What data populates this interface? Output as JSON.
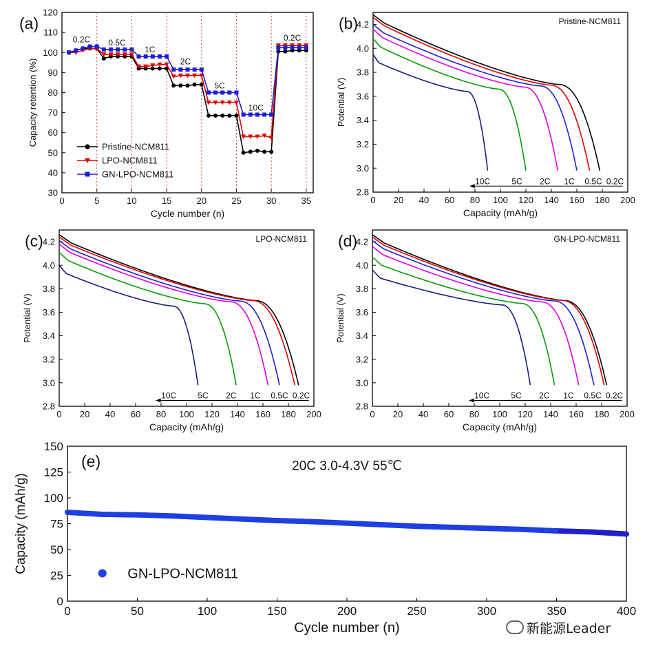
{
  "chart_data": [
    {
      "panel": "(a)",
      "type": "line",
      "xlabel": "Cycle number (n)",
      "ylabel": "Capacity retention (%)",
      "xlim": [
        0,
        36
      ],
      "ylim": [
        30,
        120
      ],
      "xticks": [
        0,
        5,
        10,
        15,
        20,
        25,
        30,
        35
      ],
      "yticks": [
        30,
        40,
        50,
        60,
        70,
        80,
        90,
        100,
        110,
        120
      ],
      "rate_labels": [
        {
          "text": "0.2C",
          "x": 2.8,
          "y": 105
        },
        {
          "text": "0.5C",
          "x": 7.9,
          "y": 103.5
        },
        {
          "text": "1C",
          "x": 12.6,
          "y": 100
        },
        {
          "text": "2C",
          "x": 17.7,
          "y": 94
        },
        {
          "text": "5C",
          "x": 22.6,
          "y": 82
        },
        {
          "text": "10C",
          "x": 27.8,
          "y": 71
        },
        {
          "text": "0.2C",
          "x": 33,
          "y": 106
        }
      ],
      "rate_boundaries": [
        5,
        10,
        15,
        20,
        25,
        30,
        35
      ],
      "x": [
        1,
        2,
        3,
        4,
        5,
        6,
        7,
        8,
        9,
        10,
        11,
        12,
        13,
        14,
        15,
        16,
        17,
        18,
        19,
        20,
        21,
        22,
        23,
        24,
        25,
        26,
        27,
        28,
        29,
        30,
        31,
        32,
        33,
        34,
        35
      ],
      "series": [
        {
          "name": "Pristine-NCM811",
          "color": "#000000",
          "marker": "circle",
          "values": [
            100,
            101,
            102,
            102,
            102,
            97,
            98,
            98,
            98,
            98,
            92,
            92,
            92,
            92,
            92,
            83.5,
            83.5,
            83.5,
            84,
            84,
            68.5,
            68.5,
            68.5,
            68.5,
            68.5,
            50,
            50.5,
            51,
            50.5,
            50.5,
            100.5,
            100.5,
            101,
            101,
            101
          ]
        },
        {
          "name": "LPO-NCM811",
          "color": "#e00000",
          "marker": "triangle",
          "values": [
            100,
            100,
            101,
            102,
            102,
            99,
            99,
            99,
            99,
            99,
            93,
            93,
            93.5,
            94,
            94,
            88,
            88.5,
            88.5,
            88.5,
            88.5,
            75,
            75,
            75,
            75,
            75,
            58,
            58,
            58,
            58.5,
            57.5,
            103.5,
            103.5,
            103.5,
            103.5,
            103.5
          ]
        },
        {
          "name": "GN-LPO-NCM811",
          "color": "#1f1fd0",
          "marker": "square",
          "values": [
            100,
            101,
            102,
            103,
            103,
            101.5,
            101.5,
            101.5,
            101.5,
            101.5,
            98,
            98,
            98,
            98,
            98,
            91.5,
            91.5,
            91.5,
            91.5,
            91.5,
            80,
            80,
            80,
            80,
            80,
            69,
            69,
            69,
            69,
            69,
            102.5,
            102.5,
            102.5,
            102.5,
            102.5
          ]
        }
      ],
      "legend": [
        "Pristine-NCM811",
        "LPO-NCM811",
        "GN-LPO-NCM811"
      ]
    },
    {
      "panel": "(b)",
      "type": "line",
      "title": "Pristine-NCM811",
      "xlabel": "Capacity (mAh/g)",
      "ylabel": "Potential (V)",
      "xlim": [
        0,
        200
      ],
      "ylim": [
        2.8,
        4.3
      ],
      "xticks": [
        0,
        20,
        40,
        60,
        80,
        100,
        120,
        140,
        160,
        180,
        200
      ],
      "yticks": [
        2.8,
        3.0,
        3.2,
        3.4,
        3.6,
        3.8,
        4.0,
        4.2
      ],
      "rate_arrow_labels": [
        "10C",
        "5C",
        "2C",
        "1C",
        "0.5C",
        "0.2C"
      ],
      "series": [
        {
          "name": "0.2C",
          "color": "#000000",
          "capacity": 178,
          "v0": 4.28
        },
        {
          "name": "0.5C",
          "color": "#e00000",
          "capacity": 170,
          "v0": 4.26
        },
        {
          "name": "1C",
          "color": "#1f1fd0",
          "capacity": 160,
          "v0": 4.2
        },
        {
          "name": "2C",
          "color": "#e000e0",
          "capacity": 145,
          "v0": 4.16
        },
        {
          "name": "5C",
          "color": "#00a000",
          "capacity": 120,
          "v0": 4.08
        },
        {
          "name": "10C",
          "color": "#1a1a80",
          "capacity": 90,
          "v0": 3.95
        }
      ]
    },
    {
      "panel": "(c)",
      "type": "line",
      "title": "LPO-NCM811",
      "xlabel": "Capacity (mAh/g)",
      "ylabel": "Potential (V)",
      "xlim": [
        0,
        200
      ],
      "ylim": [
        2.8,
        4.3
      ],
      "xticks": [
        0,
        20,
        40,
        60,
        80,
        100,
        120,
        140,
        160,
        180,
        200
      ],
      "yticks": [
        2.8,
        3.0,
        3.2,
        3.4,
        3.6,
        3.8,
        4.0,
        4.2
      ],
      "rate_arrow_labels": [
        "10C",
        "5C",
        "2C",
        "1C",
        "0.5C",
        "0.2C"
      ],
      "series": [
        {
          "name": "0.2C",
          "color": "#000000",
          "capacity": 188,
          "v0": 4.26
        },
        {
          "name": "0.5C",
          "color": "#e00000",
          "capacity": 185,
          "v0": 4.24
        },
        {
          "name": "1C",
          "color": "#1f1fd0",
          "capacity": 173,
          "v0": 4.21
        },
        {
          "name": "2C",
          "color": "#e000e0",
          "capacity": 164,
          "v0": 4.18
        },
        {
          "name": "5C",
          "color": "#00a000",
          "capacity": 139,
          "v0": 4.11
        },
        {
          "name": "10C",
          "color": "#1a1a80",
          "capacity": 109,
          "v0": 4.0
        }
      ]
    },
    {
      "panel": "(d)",
      "type": "line",
      "title": "GN-LPO-NCM811",
      "xlabel": "Capacity (mAh/g)",
      "ylabel": "Potential (V)",
      "xlim": [
        0,
        200
      ],
      "ylim": [
        2.8,
        4.3
      ],
      "xticks": [
        0,
        20,
        40,
        60,
        80,
        100,
        120,
        140,
        160,
        180,
        200
      ],
      "yticks": [
        2.8,
        3.0,
        3.2,
        3.4,
        3.6,
        3.8,
        4.0,
        4.2
      ],
      "rate_arrow_labels": [
        "10C",
        "5C",
        "2C",
        "1C",
        "0.5C",
        "0.2C"
      ],
      "series": [
        {
          "name": "0.2C",
          "color": "#000000",
          "capacity": 184,
          "v0": 4.26
        },
        {
          "name": "0.5C",
          "color": "#e00000",
          "capacity": 182,
          "v0": 4.24
        },
        {
          "name": "1C",
          "color": "#1f1fd0",
          "capacity": 174,
          "v0": 4.21
        },
        {
          "name": "2C",
          "color": "#e000e0",
          "capacity": 162,
          "v0": 4.16
        },
        {
          "name": "5C",
          "color": "#00a000",
          "capacity": 143,
          "v0": 4.07
        },
        {
          "name": "10C",
          "color": "#1a1a80",
          "capacity": 124,
          "v0": 3.96
        }
      ]
    },
    {
      "panel": "(e)",
      "type": "scatter",
      "xlabel": "Cycle number (n)",
      "ylabel": "Capacity (mAh/g)",
      "xlim": [
        0,
        400
      ],
      "ylim": [
        0,
        150
      ],
      "xticks": [
        0,
        50,
        100,
        150,
        200,
        250,
        300,
        350,
        400
      ],
      "yticks": [
        0,
        25,
        50,
        75,
        100,
        125,
        150
      ],
      "annotation": "20C   3.0-4.3V   55℃",
      "series": [
        {
          "name": "GN-LPO-NCM811",
          "color": "#1f3fe0",
          "x": [
            0,
            25,
            50,
            75,
            100,
            125,
            150,
            175,
            200,
            225,
            250,
            275,
            300,
            325,
            350,
            375,
            400
          ],
          "values": [
            86,
            84,
            83.5,
            82.5,
            81,
            79.5,
            78,
            77,
            75.5,
            74,
            72.5,
            71.5,
            70.5,
            69.5,
            68,
            67,
            65
          ]
        }
      ]
    }
  ],
  "watermark": "新能源Leader"
}
